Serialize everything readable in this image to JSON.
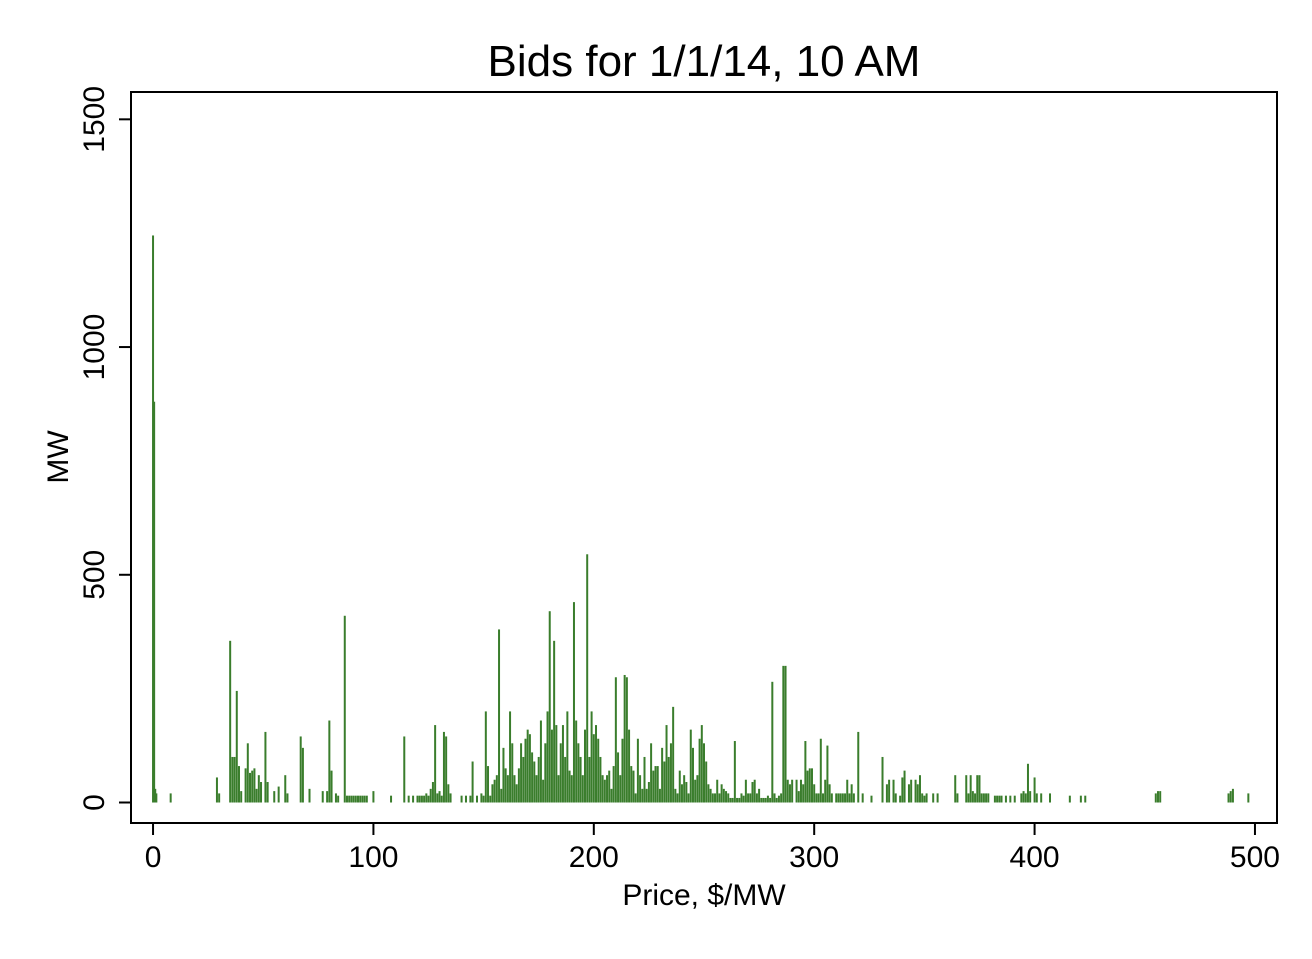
{
  "chart_data": {
    "type": "bar",
    "title": "Bids for 1/1/14, 10 AM",
    "xlabel": "Price, $/MW",
    "ylabel": "MW",
    "xlim": [
      -10,
      510
    ],
    "ylim": [
      -45,
      1560
    ],
    "x_ticks": [
      0,
      100,
      200,
      300,
      400,
      500
    ],
    "y_ticks": [
      0,
      500,
      1000,
      1500
    ],
    "x_tick_labels": [
      "0",
      "100",
      "200",
      "300",
      "400",
      "500"
    ],
    "y_tick_labels": [
      "0",
      "500",
      "1000",
      "1500"
    ],
    "grid": false,
    "legend": "none",
    "bar_color": "#3a7d2c",
    "series": [
      {
        "points": [
          [
            0,
            1245
          ],
          [
            0.5,
            880
          ],
          [
            1,
            30
          ],
          [
            1.5,
            20
          ],
          [
            8,
            20
          ],
          [
            29,
            55
          ],
          [
            30,
            20
          ],
          [
            35,
            355
          ],
          [
            36,
            100
          ],
          [
            37,
            100
          ],
          [
            38,
            245
          ],
          [
            39,
            80
          ],
          [
            40,
            25
          ],
          [
            42,
            75
          ],
          [
            43,
            130
          ],
          [
            44,
            65
          ],
          [
            45,
            70
          ],
          [
            46,
            75
          ],
          [
            47,
            30
          ],
          [
            48,
            60
          ],
          [
            49,
            45
          ],
          [
            51,
            155
          ],
          [
            52,
            45
          ],
          [
            55,
            25
          ],
          [
            57,
            35
          ],
          [
            60,
            60
          ],
          [
            61,
            20
          ],
          [
            67,
            145
          ],
          [
            68,
            120
          ],
          [
            71,
            30
          ],
          [
            77,
            25
          ],
          [
            79,
            25
          ],
          [
            80,
            180
          ],
          [
            81,
            70
          ],
          [
            83,
            20
          ],
          [
            84,
            15
          ],
          [
            87,
            410
          ],
          [
            88,
            15
          ],
          [
            89,
            15
          ],
          [
            90,
            15
          ],
          [
            91,
            15
          ],
          [
            92,
            15
          ],
          [
            93,
            15
          ],
          [
            94,
            15
          ],
          [
            95,
            15
          ],
          [
            96,
            15
          ],
          [
            97,
            15
          ],
          [
            100,
            25
          ],
          [
            108,
            15
          ],
          [
            114,
            145
          ],
          [
            116,
            15
          ],
          [
            118,
            15
          ],
          [
            120,
            15
          ],
          [
            121,
            15
          ],
          [
            122,
            15
          ],
          [
            123,
            15
          ],
          [
            124,
            20
          ],
          [
            125,
            15
          ],
          [
            126,
            30
          ],
          [
            127,
            45
          ],
          [
            128,
            170
          ],
          [
            129,
            20
          ],
          [
            130,
            25
          ],
          [
            131,
            15
          ],
          [
            132,
            155
          ],
          [
            133,
            145
          ],
          [
            134,
            40
          ],
          [
            135,
            20
          ],
          [
            140,
            15
          ],
          [
            142,
            15
          ],
          [
            144,
            15
          ],
          [
            145,
            90
          ],
          [
            147,
            15
          ],
          [
            149,
            20
          ],
          [
            150,
            15
          ],
          [
            151,
            200
          ],
          [
            152,
            80
          ],
          [
            153,
            15
          ],
          [
            154,
            40
          ],
          [
            155,
            50
          ],
          [
            156,
            60
          ],
          [
            157,
            380
          ],
          [
            158,
            30
          ],
          [
            159,
            120
          ],
          [
            160,
            75
          ],
          [
            161,
            60
          ],
          [
            162,
            200
          ],
          [
            163,
            130
          ],
          [
            164,
            60
          ],
          [
            165,
            40
          ],
          [
            166,
            75
          ],
          [
            167,
            130
          ],
          [
            168,
            100
          ],
          [
            169,
            140
          ],
          [
            170,
            160
          ],
          [
            171,
            150
          ],
          [
            172,
            110
          ],
          [
            173,
            90
          ],
          [
            174,
            60
          ],
          [
            175,
            100
          ],
          [
            176,
            180
          ],
          [
            177,
            50
          ],
          [
            178,
            130
          ],
          [
            179,
            200
          ],
          [
            180,
            420
          ],
          [
            181,
            160
          ],
          [
            182,
            355
          ],
          [
            183,
            170
          ],
          [
            184,
            60
          ],
          [
            185,
            130
          ],
          [
            186,
            170
          ],
          [
            187,
            100
          ],
          [
            188,
            200
          ],
          [
            189,
            70
          ],
          [
            190,
            60
          ],
          [
            191,
            440
          ],
          [
            192,
            180
          ],
          [
            193,
            130
          ],
          [
            194,
            100
          ],
          [
            195,
            60
          ],
          [
            196,
            160
          ],
          [
            197,
            545
          ],
          [
            198,
            100
          ],
          [
            199,
            200
          ],
          [
            200,
            150
          ],
          [
            201,
            170
          ],
          [
            202,
            140
          ],
          [
            203,
            100
          ],
          [
            204,
            60
          ],
          [
            205,
            50
          ],
          [
            206,
            60
          ],
          [
            207,
            70
          ],
          [
            208,
            30
          ],
          [
            209,
            80
          ],
          [
            210,
            275
          ],
          [
            211,
            110
          ],
          [
            212,
            60
          ],
          [
            213,
            140
          ],
          [
            214,
            280
          ],
          [
            215,
            275
          ],
          [
            216,
            160
          ],
          [
            217,
            80
          ],
          [
            218,
            70
          ],
          [
            219,
            20
          ],
          [
            220,
            140
          ],
          [
            221,
            60
          ],
          [
            222,
            30
          ],
          [
            223,
            100
          ],
          [
            224,
            30
          ],
          [
            225,
            45
          ],
          [
            226,
            130
          ],
          [
            227,
            70
          ],
          [
            228,
            80
          ],
          [
            229,
            80
          ],
          [
            230,
            30
          ],
          [
            231,
            120
          ],
          [
            232,
            90
          ],
          [
            233,
            170
          ],
          [
            234,
            100
          ],
          [
            235,
            130
          ],
          [
            236,
            210
          ],
          [
            237,
            30
          ],
          [
            238,
            20
          ],
          [
            239,
            70
          ],
          [
            240,
            40
          ],
          [
            241,
            60
          ],
          [
            242,
            45
          ],
          [
            243,
            20
          ],
          [
            244,
            160
          ],
          [
            245,
            120
          ],
          [
            246,
            50
          ],
          [
            247,
            60
          ],
          [
            248,
            140
          ],
          [
            249,
            170
          ],
          [
            250,
            130
          ],
          [
            251,
            90
          ],
          [
            252,
            40
          ],
          [
            253,
            30
          ],
          [
            254,
            20
          ],
          [
            255,
            20
          ],
          [
            256,
            50
          ],
          [
            257,
            20
          ],
          [
            258,
            40
          ],
          [
            259,
            30
          ],
          [
            260,
            25
          ],
          [
            261,
            20
          ],
          [
            262,
            10
          ],
          [
            263,
            10
          ],
          [
            264,
            135
          ],
          [
            265,
            10
          ],
          [
            266,
            10
          ],
          [
            267,
            20
          ],
          [
            268,
            15
          ],
          [
            269,
            50
          ],
          [
            270,
            20
          ],
          [
            271,
            20
          ],
          [
            272,
            45
          ],
          [
            273,
            50
          ],
          [
            274,
            20
          ],
          [
            275,
            30
          ],
          [
            276,
            10
          ],
          [
            277,
            10
          ],
          [
            278,
            10
          ],
          [
            279,
            15
          ],
          [
            280,
            10
          ],
          [
            281,
            265
          ],
          [
            282,
            20
          ],
          [
            283,
            10
          ],
          [
            284,
            15
          ],
          [
            285,
            20
          ],
          [
            286,
            300
          ],
          [
            287,
            300
          ],
          [
            288,
            50
          ],
          [
            289,
            40
          ],
          [
            290,
            50
          ],
          [
            292,
            50
          ],
          [
            293,
            25
          ],
          [
            294,
            50
          ],
          [
            295,
            40
          ],
          [
            296,
            135
          ],
          [
            297,
            70
          ],
          [
            298,
            75
          ],
          [
            299,
            75
          ],
          [
            300,
            40
          ],
          [
            301,
            20
          ],
          [
            302,
            20
          ],
          [
            303,
            140
          ],
          [
            304,
            20
          ],
          [
            305,
            50
          ],
          [
            306,
            125
          ],
          [
            307,
            40
          ],
          [
            308,
            20
          ],
          [
            310,
            20
          ],
          [
            311,
            20
          ],
          [
            312,
            20
          ],
          [
            313,
            20
          ],
          [
            314,
            20
          ],
          [
            315,
            50
          ],
          [
            316,
            20
          ],
          [
            317,
            40
          ],
          [
            318,
            20
          ],
          [
            320,
            155
          ],
          [
            322,
            20
          ],
          [
            326,
            15
          ],
          [
            331,
            100
          ],
          [
            333,
            40
          ],
          [
            334,
            50
          ],
          [
            336,
            50
          ],
          [
            337,
            20
          ],
          [
            339,
            15
          ],
          [
            340,
            55
          ],
          [
            341,
            70
          ],
          [
            343,
            40
          ],
          [
            344,
            50
          ],
          [
            346,
            50
          ],
          [
            347,
            40
          ],
          [
            348,
            60
          ],
          [
            349,
            20
          ],
          [
            350,
            15
          ],
          [
            351,
            20
          ],
          [
            354,
            20
          ],
          [
            356,
            20
          ],
          [
            364,
            60
          ],
          [
            365,
            20
          ],
          [
            369,
            60
          ],
          [
            370,
            20
          ],
          [
            371,
            60
          ],
          [
            372,
            25
          ],
          [
            373,
            20
          ],
          [
            374,
            60
          ],
          [
            375,
            60
          ],
          [
            376,
            20
          ],
          [
            377,
            20
          ],
          [
            378,
            20
          ],
          [
            379,
            20
          ],
          [
            382,
            15
          ],
          [
            383,
            15
          ],
          [
            384,
            15
          ],
          [
            385,
            15
          ],
          [
            387,
            15
          ],
          [
            389,
            15
          ],
          [
            391,
            15
          ],
          [
            394,
            20
          ],
          [
            395,
            25
          ],
          [
            396,
            20
          ],
          [
            397,
            85
          ],
          [
            398,
            25
          ],
          [
            400,
            55
          ],
          [
            401,
            20
          ],
          [
            403,
            20
          ],
          [
            407,
            20
          ],
          [
            416,
            15
          ],
          [
            421,
            15
          ],
          [
            423,
            15
          ],
          [
            455,
            20
          ],
          [
            456,
            25
          ],
          [
            457,
            25
          ],
          [
            488,
            20
          ],
          [
            489,
            25
          ],
          [
            490,
            30
          ],
          [
            497,
            20
          ]
        ]
      }
    ]
  }
}
